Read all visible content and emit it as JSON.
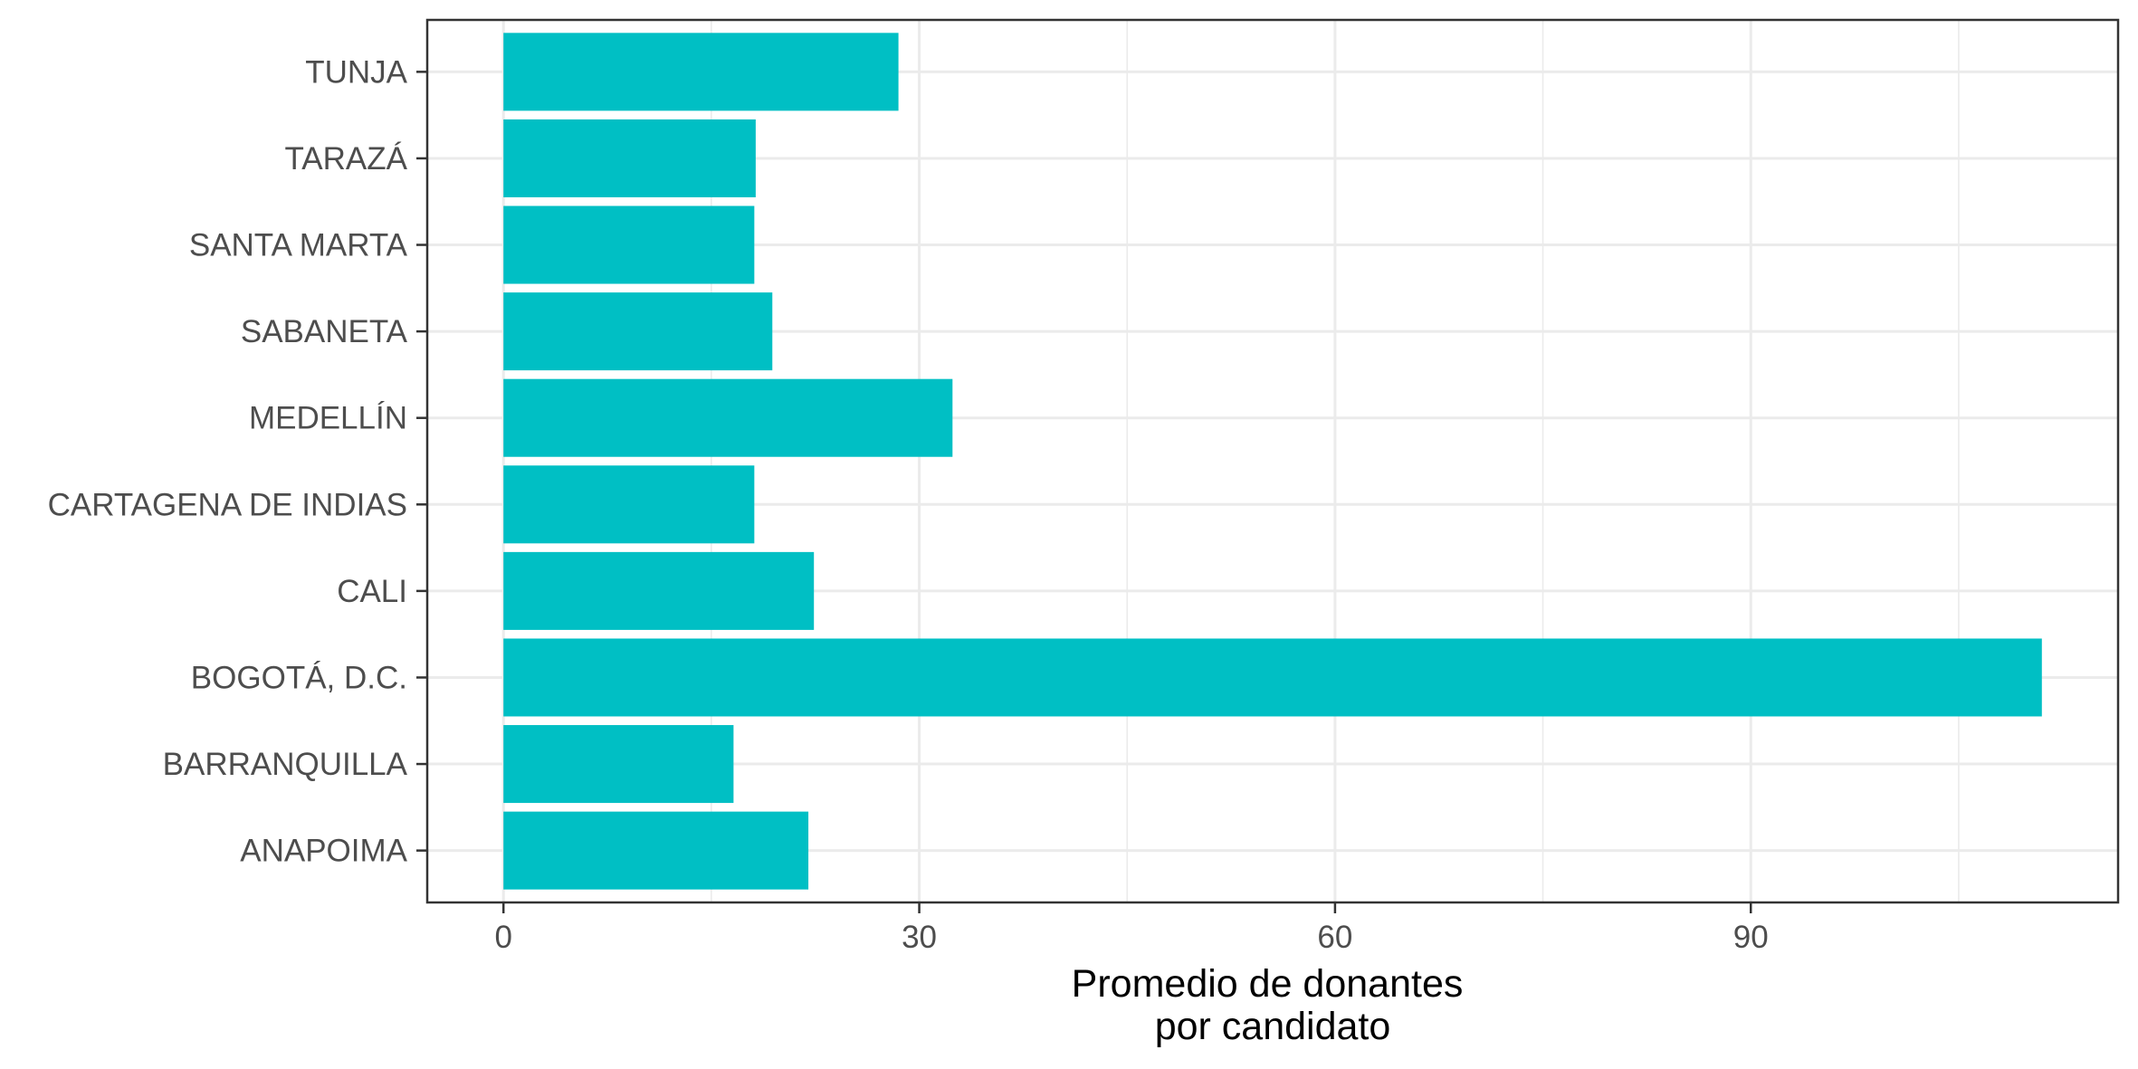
{
  "chart_data": {
    "type": "bar",
    "orientation": "horizontal",
    "categories": [
      "ANAPOIMA",
      "BARRANQUILLA",
      "BOGOTÁ, D.C.",
      "CALI",
      "CARTAGENA DE INDIAS",
      "MEDELLÍN",
      "SABANETA",
      "SANTA MARTA",
      "TARAZÁ",
      "TUNJA"
    ],
    "values": [
      22.0,
      16.6,
      111.0,
      22.4,
      18.1,
      32.4,
      19.4,
      18.1,
      18.2,
      28.5
    ],
    "title": "",
    "xlabel": [
      "Promedio de donantes",
      "por candidato"
    ],
    "ylabel": "",
    "xlim": [
      -5.5,
      116.5
    ],
    "x_ticks": [
      0,
      30,
      60,
      90
    ],
    "x_tick_labels": [
      "0",
      "30",
      "60",
      "90"
    ],
    "x_minor_ticks": [
      15,
      45,
      75,
      105
    ],
    "grid": true,
    "legend": "none"
  },
  "colors": {
    "bar": "#00BFC4",
    "grid": "#ebebeb",
    "panel_border": "#333333",
    "tick_label": "#4d4d4d",
    "axis_title": "#000000",
    "background": "#ffffff"
  }
}
